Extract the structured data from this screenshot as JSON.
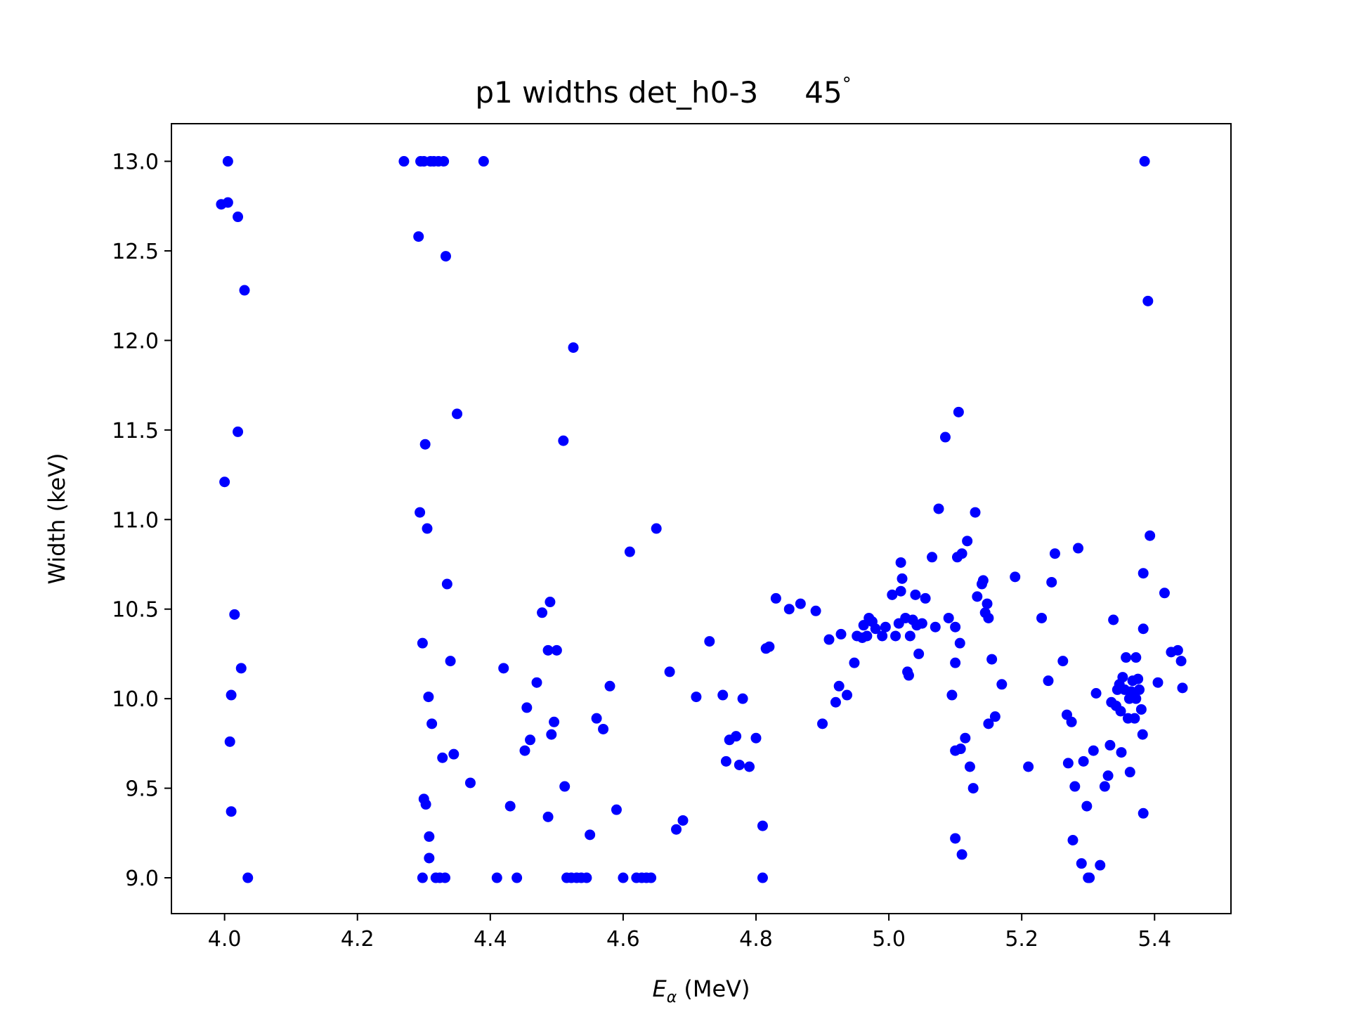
{
  "chart_data": {
    "type": "scatter",
    "title": "p1 widths det_h0-3    45°",
    "title_main": "p1 widths det_h0-3",
    "title_angle": "45",
    "title_degree": "°",
    "xlabel_symbol": "E",
    "xlabel_sub": "α",
    "xlabel_unit": " (MeV)",
    "ylabel": "Width (keV)",
    "xlim": [
      3.92,
      5.515
    ],
    "ylim": [
      8.8,
      13.21
    ],
    "xticks": [
      4.0,
      4.2,
      4.4,
      4.6,
      4.8,
      5.0,
      5.2,
      5.4
    ],
    "xtick_labels": [
      "4.0",
      "4.2",
      "4.4",
      "4.6",
      "4.8",
      "5.0",
      "5.2",
      "5.4"
    ],
    "yticks": [
      9.0,
      9.5,
      10.0,
      10.5,
      11.0,
      11.5,
      12.0,
      12.5,
      13.0
    ],
    "ytick_labels": [
      "9.0",
      "9.5",
      "10.0",
      "10.5",
      "11.0",
      "11.5",
      "12.0",
      "12.5",
      "13.0"
    ],
    "grid": false,
    "marker_color": "#0000ff",
    "points": [
      [
        4.005,
        13.0
      ],
      [
        3.995,
        12.76
      ],
      [
        4.005,
        12.77
      ],
      [
        4.02,
        12.69
      ],
      [
        4.03,
        12.28
      ],
      [
        4.02,
        11.49
      ],
      [
        4.0,
        11.21
      ],
      [
        4.015,
        10.47
      ],
      [
        4.025,
        10.17
      ],
      [
        4.01,
        10.02
      ],
      [
        4.008,
        9.76
      ],
      [
        4.01,
        9.37
      ],
      [
        4.035,
        9.0
      ],
      [
        4.27,
        13.0
      ],
      [
        4.295,
        13.0
      ],
      [
        4.3,
        13.0
      ],
      [
        4.31,
        13.0
      ],
      [
        4.315,
        13.0
      ],
      [
        4.322,
        13.0
      ],
      [
        4.33,
        13.0
      ],
      [
        4.39,
        13.0
      ],
      [
        4.292,
        12.58
      ],
      [
        4.333,
        12.47
      ],
      [
        4.302,
        11.42
      ],
      [
        4.35,
        11.59
      ],
      [
        4.294,
        11.04
      ],
      [
        4.305,
        10.95
      ],
      [
        4.335,
        10.64
      ],
      [
        4.298,
        10.31
      ],
      [
        4.34,
        10.21
      ],
      [
        4.307,
        10.01
      ],
      [
        4.312,
        9.86
      ],
      [
        4.345,
        9.69
      ],
      [
        4.328,
        9.67
      ],
      [
        4.37,
        9.53
      ],
      [
        4.3,
        9.44
      ],
      [
        4.303,
        9.41
      ],
      [
        4.308,
        9.23
      ],
      [
        4.308,
        9.11
      ],
      [
        4.298,
        9.0
      ],
      [
        4.318,
        9.0
      ],
      [
        4.324,
        9.0
      ],
      [
        4.332,
        9.0
      ],
      [
        4.41,
        9.0
      ],
      [
        4.44,
        9.0
      ],
      [
        4.515,
        9.0
      ],
      [
        4.522,
        9.0
      ],
      [
        4.53,
        9.0
      ],
      [
        4.537,
        9.0
      ],
      [
        4.545,
        9.0
      ],
      [
        4.6,
        9.0
      ],
      [
        4.62,
        9.0
      ],
      [
        4.628,
        9.0
      ],
      [
        4.635,
        9.0
      ],
      [
        4.642,
        9.0
      ],
      [
        4.81,
        9.0
      ],
      [
        4.525,
        11.96
      ],
      [
        4.51,
        11.44
      ],
      [
        4.61,
        10.82
      ],
      [
        4.65,
        10.95
      ],
      [
        4.49,
        10.54
      ],
      [
        4.478,
        10.48
      ],
      [
        4.487,
        10.27
      ],
      [
        4.5,
        10.27
      ],
      [
        4.42,
        10.17
      ],
      [
        4.47,
        10.09
      ],
      [
        4.455,
        9.95
      ],
      [
        4.496,
        9.87
      ],
      [
        4.492,
        9.8
      ],
      [
        4.46,
        9.77
      ],
      [
        4.452,
        9.71
      ],
      [
        4.43,
        9.4
      ],
      [
        4.487,
        9.34
      ],
      [
        4.512,
        9.51
      ],
      [
        4.58,
        10.07
      ],
      [
        4.56,
        9.89
      ],
      [
        4.57,
        9.83
      ],
      [
        4.59,
        9.38
      ],
      [
        4.55,
        9.24
      ],
      [
        4.67,
        10.15
      ],
      [
        4.71,
        10.01
      ],
      [
        4.73,
        10.32
      ],
      [
        4.69,
        9.32
      ],
      [
        4.68,
        9.27
      ],
      [
        4.75,
        10.02
      ],
      [
        4.78,
        10.0
      ],
      [
        4.77,
        9.79
      ],
      [
        4.76,
        9.77
      ],
      [
        4.8,
        9.78
      ],
      [
        4.755,
        9.65
      ],
      [
        4.775,
        9.63
      ],
      [
        4.79,
        9.62
      ],
      [
        4.81,
        9.29
      ],
      [
        4.815,
        10.28
      ],
      [
        4.82,
        10.29
      ],
      [
        4.83,
        10.56
      ],
      [
        4.85,
        10.5
      ],
      [
        4.867,
        10.53
      ],
      [
        4.89,
        10.49
      ],
      [
        4.9,
        9.86
      ],
      [
        4.91,
        10.33
      ],
      [
        4.92,
        9.98
      ],
      [
        4.925,
        10.07
      ],
      [
        4.928,
        10.36
      ],
      [
        4.937,
        10.02
      ],
      [
        4.948,
        10.2
      ],
      [
        4.952,
        10.35
      ],
      [
        4.96,
        10.34
      ],
      [
        4.962,
        10.41
      ],
      [
        4.967,
        10.35
      ],
      [
        4.97,
        10.45
      ],
      [
        4.975,
        10.43
      ],
      [
        4.98,
        10.39
      ],
      [
        4.99,
        10.35
      ],
      [
        4.995,
        10.4
      ],
      [
        5.005,
        10.58
      ],
      [
        5.01,
        10.35
      ],
      [
        5.015,
        10.42
      ],
      [
        5.018,
        10.76
      ],
      [
        5.02,
        10.67
      ],
      [
        5.018,
        10.6
      ],
      [
        5.025,
        10.45
      ],
      [
        5.028,
        10.15
      ],
      [
        5.03,
        10.13
      ],
      [
        5.032,
        10.35
      ],
      [
        5.036,
        10.44
      ],
      [
        5.04,
        10.58
      ],
      [
        5.042,
        10.41
      ],
      [
        5.045,
        10.25
      ],
      [
        5.05,
        10.42
      ],
      [
        5.055,
        10.56
      ],
      [
        5.065,
        10.79
      ],
      [
        5.07,
        10.4
      ],
      [
        5.075,
        11.06
      ],
      [
        5.085,
        11.46
      ],
      [
        5.09,
        10.45
      ],
      [
        5.095,
        10.02
      ],
      [
        5.1,
        10.4
      ],
      [
        5.1,
        10.2
      ],
      [
        5.1,
        9.71
      ],
      [
        5.1,
        9.22
      ],
      [
        5.103,
        10.79
      ],
      [
        5.105,
        11.6
      ],
      [
        5.107,
        10.31
      ],
      [
        5.108,
        9.72
      ],
      [
        5.11,
        10.81
      ],
      [
        5.11,
        9.13
      ],
      [
        5.115,
        9.78
      ],
      [
        5.118,
        10.88
      ],
      [
        5.122,
        9.62
      ],
      [
        5.127,
        9.5
      ],
      [
        5.13,
        11.04
      ],
      [
        5.133,
        10.57
      ],
      [
        5.14,
        10.64
      ],
      [
        5.142,
        10.66
      ],
      [
        5.145,
        10.48
      ],
      [
        5.148,
        10.53
      ],
      [
        5.15,
        10.45
      ],
      [
        5.15,
        9.86
      ],
      [
        5.155,
        10.22
      ],
      [
        5.16,
        9.9
      ],
      [
        5.17,
        10.08
      ],
      [
        5.19,
        10.68
      ],
      [
        5.21,
        9.62
      ],
      [
        5.23,
        10.45
      ],
      [
        5.24,
        10.1
      ],
      [
        5.245,
        10.65
      ],
      [
        5.25,
        10.81
      ],
      [
        5.262,
        10.21
      ],
      [
        5.268,
        9.91
      ],
      [
        5.27,
        9.64
      ],
      [
        5.275,
        9.87
      ],
      [
        5.277,
        9.21
      ],
      [
        5.28,
        9.51
      ],
      [
        5.285,
        10.84
      ],
      [
        5.29,
        9.08
      ],
      [
        5.293,
        9.65
      ],
      [
        5.298,
        9.4
      ],
      [
        5.3,
        9.0
      ],
      [
        5.302,
        9.0
      ],
      [
        5.308,
        9.71
      ],
      [
        5.312,
        10.03
      ],
      [
        5.318,
        9.07
      ],
      [
        5.325,
        9.51
      ],
      [
        5.33,
        9.57
      ],
      [
        5.333,
        9.74
      ],
      [
        5.335,
        9.98
      ],
      [
        5.338,
        10.44
      ],
      [
        5.342,
        9.96
      ],
      [
        5.344,
        10.05
      ],
      [
        5.347,
        10.08
      ],
      [
        5.349,
        9.93
      ],
      [
        5.35,
        9.7
      ],
      [
        5.352,
        10.12
      ],
      [
        5.355,
        10.05
      ],
      [
        5.357,
        10.23
      ],
      [
        5.36,
        9.89
      ],
      [
        5.362,
        10.0
      ],
      [
        5.363,
        9.59
      ],
      [
        5.365,
        10.04
      ],
      [
        5.367,
        10.1
      ],
      [
        5.37,
        9.89
      ],
      [
        5.372,
        10.0
      ],
      [
        5.372,
        10.23
      ],
      [
        5.375,
        10.11
      ],
      [
        5.377,
        10.05
      ],
      [
        5.38,
        9.94
      ],
      [
        5.382,
        9.8
      ],
      [
        5.383,
        10.39
      ],
      [
        5.383,
        10.7
      ],
      [
        5.383,
        9.36
      ],
      [
        5.385,
        13.0
      ],
      [
        5.39,
        12.22
      ],
      [
        5.393,
        10.91
      ],
      [
        5.405,
        10.09
      ],
      [
        5.415,
        10.59
      ],
      [
        5.425,
        10.26
      ],
      [
        5.435,
        10.27
      ],
      [
        5.44,
        10.21
      ],
      [
        5.442,
        10.06
      ]
    ]
  }
}
